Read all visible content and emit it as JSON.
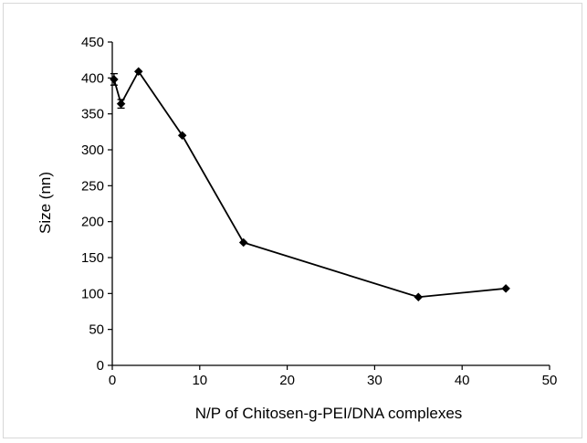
{
  "chart_data": {
    "type": "line",
    "title": "",
    "xlabel": "N/P of Chitosen-g-PEI/DNA complexes",
    "ylabel": "Size (nn)",
    "xlim": [
      0,
      50
    ],
    "ylim": [
      0,
      450
    ],
    "xticks": [
      "0",
      "10",
      "20",
      "30",
      "40",
      "50"
    ],
    "yticks": [
      "0",
      "50",
      "100",
      "150",
      "200",
      "250",
      "300",
      "350",
      "400",
      "450"
    ],
    "grid": false,
    "legend": "none",
    "series": [
      {
        "color": "#000000",
        "marker": "diamond",
        "x": [
          0.2,
          1,
          3,
          8,
          15,
          35,
          45
        ],
        "y": [
          398,
          364,
          409,
          320,
          171,
          95,
          107
        ],
        "error": [
          8,
          6,
          0,
          0,
          0,
          0,
          0
        ]
      }
    ]
  }
}
